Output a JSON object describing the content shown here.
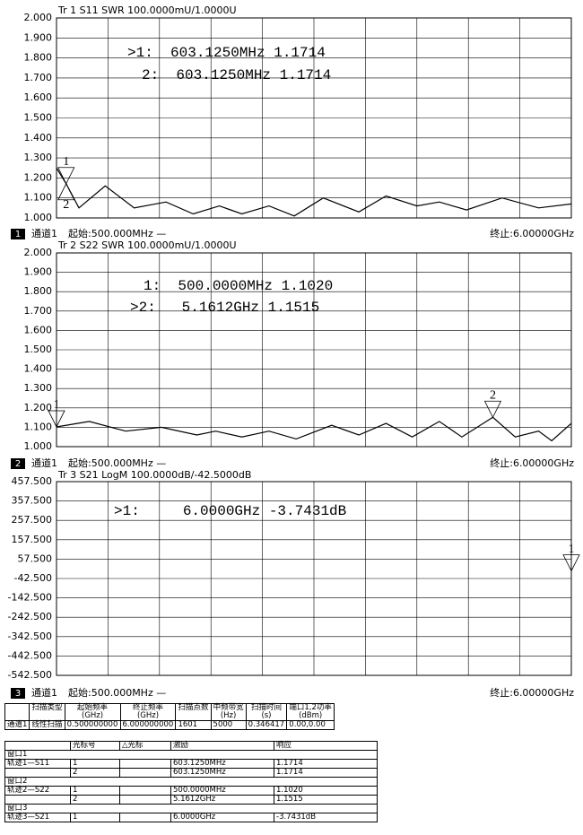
{
  "chart_data": [
    {
      "type": "line",
      "title": "Tr 1  S11 SWR 100.0000mU/1.0000U",
      "xlim": [
        0.5,
        6
      ],
      "ylim": [
        1,
        2
      ],
      "yticks": [
        {
          "value": 1,
          "label": "1.000"
        },
        {
          "value": 1.1,
          "label": "1.100"
        },
        {
          "value": 1.2,
          "label": "1.200"
        },
        {
          "value": 1.3,
          "label": "1.300"
        },
        {
          "value": 1.4,
          "label": "1.400"
        },
        {
          "value": 1.5,
          "label": "1.500"
        },
        {
          "value": 1.6,
          "label": "1.600"
        },
        {
          "value": 1.7,
          "label": "1.700"
        },
        {
          "value": 1.8,
          "label": "1.800"
        },
        {
          "value": 1.9,
          "label": "1.900"
        },
        {
          "value": 2,
          "label": "2.000"
        }
      ],
      "grid": true,
      "x": [
        0.5,
        0.603,
        0.74,
        1.02,
        1.33,
        1.67,
        1.96,
        2.24,
        2.48,
        2.77,
        3.04,
        3.35,
        3.73,
        4.02,
        4.35,
        4.59,
        4.88,
        5.26,
        5.65,
        6.0
      ],
      "series": [
        {
          "color": "#000000",
          "values": [
            1.25,
            1.1714,
            1.05,
            1.16,
            1.05,
            1.08,
            1.02,
            1.06,
            1.02,
            1.06,
            1.01,
            1.1,
            1.03,
            1.11,
            1.06,
            1.08,
            1.04,
            1.1,
            1.05,
            1.07
          ]
        }
      ],
      "markers": [
        {
          "label": "1",
          "readout": ">1:  603.1250MHz 1.1714",
          "x": 0.603125,
          "y": 1.1714
        },
        {
          "label": "2",
          "readout": "2:  603.1250MHz 1.1714",
          "x": 0.603125,
          "y": 1.1714
        }
      ],
      "channel_number": "1",
      "channel": "通道1",
      "start": "起始:500.000MHz —",
      "stop": "终止:6.00000GHz"
    },
    {
      "type": "line",
      "title": "Tr 2  S22 SWR 100.0000mU/1.0000U",
      "xlim": [
        0.5,
        6
      ],
      "ylim": [
        1,
        2
      ],
      "yticks": [
        {
          "value": 1,
          "label": "1.000"
        },
        {
          "value": 1.1,
          "label": "1.100"
        },
        {
          "value": 1.2,
          "label": "1.200"
        },
        {
          "value": 1.3,
          "label": "1.300"
        },
        {
          "value": 1.4,
          "label": "1.400"
        },
        {
          "value": 1.5,
          "label": "1.500"
        },
        {
          "value": 1.6,
          "label": "1.600"
        },
        {
          "value": 1.7,
          "label": "1.700"
        },
        {
          "value": 1.8,
          "label": "1.800"
        },
        {
          "value": 1.9,
          "label": "1.900"
        },
        {
          "value": 2,
          "label": "2.000"
        }
      ],
      "grid": true,
      "x": [
        0.5,
        0.85,
        1.24,
        1.62,
        2.0,
        2.2,
        2.48,
        2.77,
        3.06,
        3.44,
        3.73,
        4.02,
        4.3,
        4.59,
        4.83,
        5.1612,
        5.4,
        5.65,
        5.79,
        6.0
      ],
      "series": [
        {
          "color": "#000000",
          "values": [
            1.102,
            1.13,
            1.08,
            1.1,
            1.06,
            1.08,
            1.05,
            1.08,
            1.04,
            1.11,
            1.06,
            1.12,
            1.05,
            1.13,
            1.05,
            1.1515,
            1.05,
            1.08,
            1.03,
            1.12
          ]
        }
      ],
      "markers": [
        {
          "label": "1",
          "readout": "1:  500.0000MHz 1.1020",
          "x": 0.5,
          "y": 1.102
        },
        {
          "label": "2",
          "readout": ">2:   5.1612GHz 1.1515",
          "x": 5.1612,
          "y": 1.1515
        }
      ],
      "channel_number": "2",
      "channel": "通道1",
      "start": "起始:500.000MHz —",
      "stop": "终止:6.00000GHz"
    },
    {
      "type": "line",
      "title": "Tr 3  S21 LogM 100.0000dB/-42.5000dB",
      "xlim": [
        0.5,
        6
      ],
      "ylim": [
        -542.5,
        457.5
      ],
      "yticks": [
        {
          "value": -542.5,
          "label": "-542.500"
        },
        {
          "value": -442.5,
          "label": "-442.500"
        },
        {
          "value": -342.5,
          "label": "-342.500"
        },
        {
          "value": -242.5,
          "label": "-242.500"
        },
        {
          "value": -142.5,
          "label": "-142.500"
        },
        {
          "value": -42.5,
          "label": "-42.500"
        },
        {
          "value": 57.5,
          "label": "57.500"
        },
        {
          "value": 157.5,
          "label": "157.500"
        },
        {
          "value": 257.5,
          "label": "257.500"
        },
        {
          "value": 357.5,
          "label": "357.500"
        },
        {
          "value": 457.5,
          "label": "457.500"
        }
      ],
      "grid": true,
      "markers": [
        {
          "label": "1",
          "readout": ">1:     6.0000GHz -3.7431dB",
          "x": 6.0,
          "y": -3.7431
        }
      ],
      "channel_number": "3",
      "channel": "通道1",
      "start": "起始:500.000MHz —",
      "stop": "终止:6.00000GHz"
    }
  ],
  "sweep_table": {
    "header": [
      "扫描类型",
      "起始频率\n(GHz)",
      "终止频率\n(GHz)",
      "扫描点数",
      "中频带宽\n(Hz)",
      "扫描时间\n(s)",
      "端口1,2功率\n(dBm)"
    ],
    "row": [
      "通道1",
      "线性扫描",
      "0.500000000",
      "6.000000000",
      "1601",
      "5000",
      "0.346417",
      "0.00,0.00"
    ]
  },
  "marker_table": {
    "header": [
      "光标号",
      "△光标",
      "激励",
      "响应"
    ],
    "sections": [
      {
        "window": "窗口1",
        "trace": "轨迹1—S11",
        "rows": [
          [
            "1",
            "603.1250MHz",
            "1.1714"
          ],
          [
            "2",
            "603.1250MHz",
            "1.1714"
          ]
        ]
      },
      {
        "window": "窗口2",
        "trace": "轨迹2—S22",
        "rows": [
          [
            "1",
            "500.0000MHz",
            "1.1020"
          ],
          [
            "2",
            "5.1612GHz",
            "1.1515"
          ]
        ]
      },
      {
        "window": "窗口3",
        "trace": "轨迹3—S21",
        "rows": [
          [
            "1",
            "6.0000GHz",
            "-3.7431dB"
          ]
        ]
      }
    ]
  }
}
